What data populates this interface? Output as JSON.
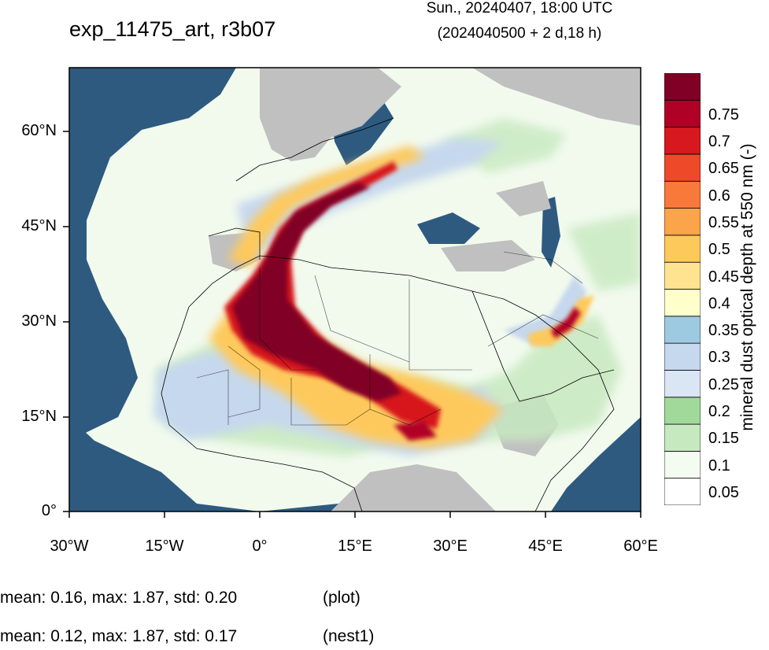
{
  "header": {
    "title": "exp_11475_art, r3b07",
    "valid_time": "Sun., 20240407, 18:00 UTC",
    "init_time": "(2024040500 + 2 d,18 h)"
  },
  "map": {
    "lon_ticks": [
      "30°W",
      "15°W",
      "0°",
      "15°E",
      "30°E",
      "45°E",
      "60°E"
    ],
    "lat_ticks": [
      "60°N",
      "45°N",
      "30°N",
      "15°N",
      "0°"
    ],
    "lon_range": [
      -30,
      60
    ],
    "lat_range": [
      0,
      70
    ],
    "colors": {
      "ocean": "#2e5a80",
      "land_nodata": "#c0c0c0",
      "background_low": "#f2faee"
    }
  },
  "colorbar": {
    "title": "mineral dust optical depth at 550 nm (-)",
    "levels": [
      "0.05",
      "0.1",
      "0.15",
      "0.2",
      "0.25",
      "0.3",
      "0.35",
      "0.4",
      "0.45",
      "0.5",
      "0.55",
      "0.6",
      "0.65",
      "0.7",
      "0.75"
    ],
    "colors": [
      "#ffffff",
      "#f4fbf1",
      "#c7e9c0",
      "#a1d99b",
      "#dbe6f4",
      "#c6d8ee",
      "#9ecae1",
      "#ffffcc",
      "#ffe391",
      "#fec95b",
      "#fca44a",
      "#f8793a",
      "#ee4a2a",
      "#d7181e",
      "#b10026",
      "#800026"
    ]
  },
  "stats": [
    {
      "text": "mean: 0.16, max: 1.87, std: 0.20",
      "tag": "(plot)"
    },
    {
      "text": "mean: 0.12, max: 1.87, std: 0.17",
      "tag": "(nest1)"
    }
  ]
}
